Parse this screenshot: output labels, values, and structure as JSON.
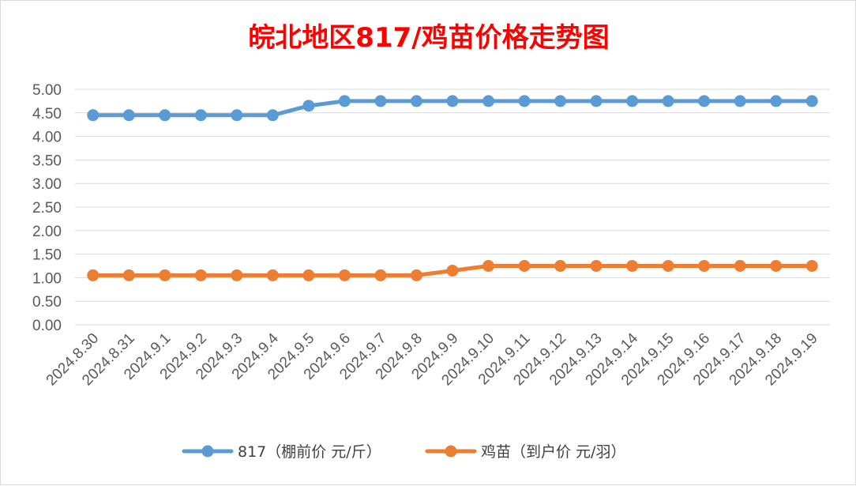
{
  "chart_data": {
    "type": "line",
    "title": "皖北地区817/鸡苗价格走势图",
    "categories": [
      "2024.8.30",
      "2024.8.31",
      "2024.9.1",
      "2024.9.2",
      "2024.9.3",
      "2024.9.4",
      "2024.9.5",
      "2024.9.6",
      "2024.9.7",
      "2024.9.8",
      "2024.9.9",
      "2024.9.10",
      "2024.9.11",
      "2024.9.12",
      "2024.9.13",
      "2024.9.14",
      "2024.9.15",
      "2024.9.16",
      "2024.9.17",
      "2024.9.18",
      "2024.9.19"
    ],
    "y_ticks": [
      "0.00",
      "0.50",
      "1.00",
      "1.50",
      "2.00",
      "2.50",
      "3.00",
      "3.50",
      "4.00",
      "4.50",
      "5.00"
    ],
    "ylim": [
      0,
      5
    ],
    "grid": true,
    "legend_position": "bottom",
    "series": [
      {
        "name": "817（棚前价 元/斤）",
        "color": "#5b9bd5",
        "values": [
          4.45,
          4.45,
          4.45,
          4.45,
          4.45,
          4.45,
          4.65,
          4.75,
          4.75,
          4.75,
          4.75,
          4.75,
          4.75,
          4.75,
          4.75,
          4.75,
          4.75,
          4.75,
          4.75,
          4.75,
          4.75
        ]
      },
      {
        "name": "鸡苗（到户价 元/羽）",
        "color": "#ed7d31",
        "values": [
          1.05,
          1.05,
          1.05,
          1.05,
          1.05,
          1.05,
          1.05,
          1.05,
          1.05,
          1.05,
          1.15,
          1.25,
          1.25,
          1.25,
          1.25,
          1.25,
          1.25,
          1.25,
          1.25,
          1.25,
          1.25
        ]
      }
    ]
  }
}
